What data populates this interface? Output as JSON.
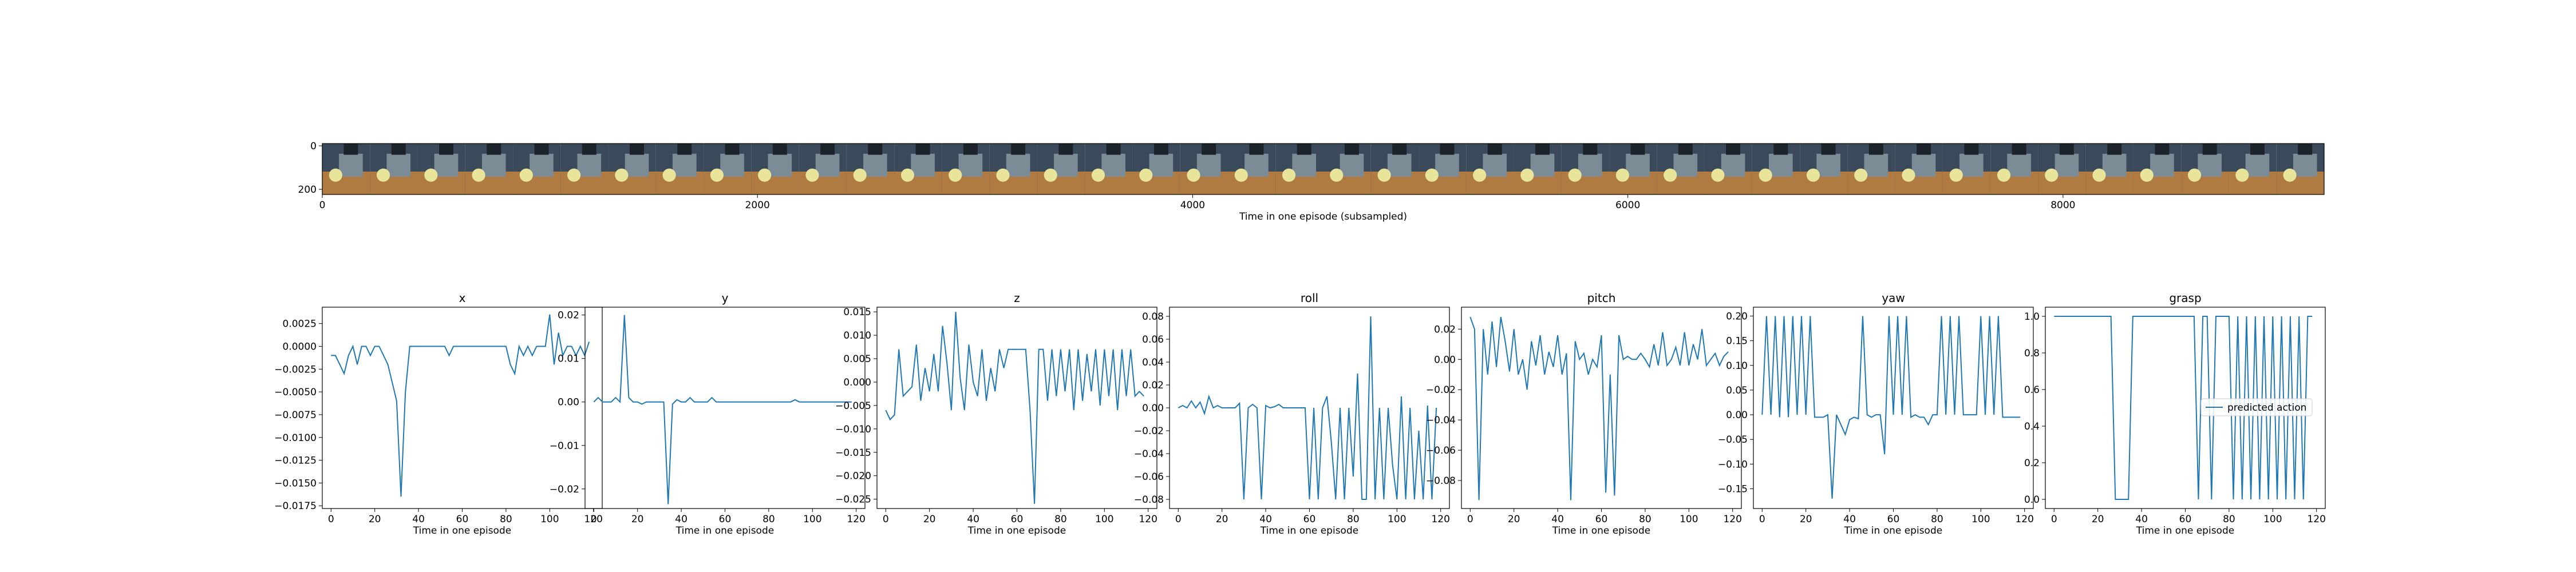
{
  "colors": {
    "series": "#1f77b4",
    "axis": "#000000",
    "background": "#ffffff"
  },
  "strip": {
    "xlabel": "Time in one episode (subsampled)",
    "xticks": [
      "0",
      "2000",
      "4000",
      "6000",
      "8000"
    ],
    "yticks": [
      "0",
      "200"
    ],
    "tiles": 42,
    "palette": [
      "#3a4a5a",
      "#7b8c97",
      "#b07a43",
      "#e8e59a",
      "#1c232b",
      "#8a6a48"
    ]
  },
  "chart_data": [
    {
      "type": "line",
      "title": "x",
      "xlabel": "Time in one episode",
      "xlim": [
        -4,
        124
      ],
      "ylim": [
        -0.0178,
        0.0043
      ],
      "yticks": [
        "0.0025",
        "0.0000",
        "−0.0025",
        "−0.0050",
        "−0.0075",
        "−0.0100",
        "−0.0125",
        "−0.0150",
        "−0.0175"
      ],
      "ytick_values": [
        0.0025,
        0,
        -0.0025,
        -0.005,
        -0.0075,
        -0.01,
        -0.0125,
        -0.015,
        -0.0175
      ],
      "xticks": [
        "0",
        "20",
        "40",
        "60",
        "80",
        "100",
        "120"
      ],
      "xtick_values": [
        0,
        20,
        40,
        60,
        80,
        100,
        120
      ],
      "x": [
        0,
        2,
        4,
        6,
        8,
        10,
        12,
        14,
        16,
        18,
        20,
        22,
        24,
        26,
        28,
        30,
        32,
        34,
        36,
        38,
        40,
        42,
        44,
        46,
        48,
        50,
        52,
        54,
        56,
        58,
        60,
        62,
        64,
        66,
        68,
        70,
        72,
        74,
        76,
        78,
        80,
        82,
        84,
        86,
        88,
        90,
        92,
        94,
        96,
        98,
        100,
        102,
        104,
        106,
        108,
        110,
        112,
        114,
        116,
        118
      ],
      "y": [
        -0.001,
        -0.001,
        -0.002,
        -0.003,
        -0.001,
        0.0,
        -0.002,
        0.0,
        0.0,
        -0.001,
        0.0,
        0.0,
        -0.001,
        -0.002,
        -0.004,
        -0.006,
        -0.0165,
        -0.005,
        0.0,
        0.0,
        0.0,
        0.0,
        0.0,
        0.0,
        0.0,
        0.0,
        0.0,
        -0.001,
        0.0,
        0.0,
        0.0,
        0.0,
        0.0,
        0.0,
        0.0,
        0.0,
        0.0,
        0.0,
        0.0,
        0.0,
        0.0,
        -0.002,
        -0.003,
        0.0,
        -0.001,
        0.0,
        -0.001,
        0.0,
        0.0,
        0.0,
        0.0035,
        -0.002,
        0.0015,
        -0.001,
        0.0,
        0.0,
        -0.001,
        0.0,
        -0.001,
        0.0005
      ],
      "legend": ""
    },
    {
      "type": "line",
      "title": "y",
      "xlabel": "Time in one episode",
      "xlim": [
        -4,
        124
      ],
      "ylim": [
        -0.0245,
        0.0218
      ],
      "yticks": [
        "0.02",
        "0.01",
        "0.00",
        "−0.01",
        "−0.02"
      ],
      "ytick_values": [
        0.02,
        0.01,
        0,
        -0.01,
        -0.02
      ],
      "xticks": [
        "0",
        "20",
        "40",
        "60",
        "80",
        "100",
        "120"
      ],
      "xtick_values": [
        0,
        20,
        40,
        60,
        80,
        100,
        120
      ],
      "x": [
        0,
        2,
        4,
        6,
        8,
        10,
        12,
        14,
        16,
        18,
        20,
        22,
        24,
        26,
        28,
        30,
        32,
        34,
        36,
        38,
        40,
        42,
        44,
        46,
        48,
        50,
        52,
        54,
        56,
        58,
        60,
        62,
        64,
        66,
        68,
        70,
        72,
        74,
        76,
        78,
        80,
        82,
        84,
        86,
        88,
        90,
        92,
        94,
        96,
        98,
        100,
        102,
        104,
        106,
        108,
        110,
        112,
        114,
        116,
        118
      ],
      "y": [
        0.0,
        0.001,
        0.0,
        0.0,
        0.0,
        0.001,
        0.0,
        0.02,
        0.001,
        0.0,
        0.0,
        -0.0005,
        0.0,
        0.0,
        0.0,
        0.0,
        0.0,
        -0.0235,
        -0.0005,
        0.0005,
        0.0,
        0.0,
        0.001,
        0.0,
        0.0,
        0.0,
        0.0,
        0.001,
        0.0,
        0.0,
        0.0,
        0.0,
        0.0,
        0.0,
        0.0,
        0.0,
        0.0,
        0.0,
        0.0,
        0.0,
        0.0,
        0.0,
        0.0,
        0.0,
        0.0,
        0.0,
        0.0005,
        0.0,
        0.0,
        0.0,
        0.0,
        0.0,
        0.0,
        0.0,
        0.0,
        0.0,
        0.0,
        0.0,
        0.0,
        0.0
      ],
      "legend": ""
    },
    {
      "type": "line",
      "title": "z",
      "xlabel": "Time in one episode",
      "xlim": [
        -4,
        124
      ],
      "ylim": [
        -0.027,
        0.016
      ],
      "yticks": [
        "0.015",
        "0.010",
        "0.005",
        "0.000",
        "−0.005",
        "−0.010",
        "−0.015",
        "−0.020",
        "−0.025"
      ],
      "ytick_values": [
        0.015,
        0.01,
        0.005,
        0,
        -0.005,
        -0.01,
        -0.015,
        -0.02,
        -0.025
      ],
      "xticks": [
        "0",
        "20",
        "40",
        "60",
        "80",
        "100",
        "120"
      ],
      "xtick_values": [
        0,
        20,
        40,
        60,
        80,
        100,
        120
      ],
      "x": [
        0,
        2,
        4,
        6,
        8,
        10,
        12,
        14,
        16,
        18,
        20,
        22,
        24,
        26,
        28,
        30,
        32,
        34,
        36,
        38,
        40,
        42,
        44,
        46,
        48,
        50,
        52,
        54,
        56,
        58,
        60,
        62,
        64,
        66,
        68,
        70,
        72,
        74,
        76,
        78,
        80,
        82,
        84,
        86,
        88,
        90,
        92,
        94,
        96,
        98,
        100,
        102,
        104,
        106,
        108,
        110,
        112,
        114,
        116,
        118
      ],
      "y": [
        -0.006,
        -0.008,
        -0.007,
        0.007,
        -0.003,
        -0.002,
        -0.001,
        0.008,
        -0.004,
        0.003,
        -0.002,
        0.006,
        -0.002,
        0.012,
        0.004,
        -0.006,
        0.015,
        0.001,
        -0.006,
        0.008,
        0.0,
        -0.003,
        0.007,
        -0.004,
        0.003,
        -0.002,
        0.007,
        0.003,
        0.007,
        0.007,
        0.007,
        0.007,
        0.007,
        -0.006,
        -0.026,
        0.007,
        0.007,
        -0.004,
        0.007,
        -0.003,
        0.007,
        -0.002,
        0.007,
        -0.006,
        0.007,
        -0.004,
        0.006,
        -0.002,
        0.007,
        -0.005,
        0.007,
        -0.003,
        0.007,
        -0.006,
        0.007,
        -0.003,
        0.007,
        -0.003,
        -0.002,
        -0.003
      ],
      "legend": ""
    },
    {
      "type": "line",
      "title": "roll",
      "xlabel": "Time in one episode",
      "xlim": [
        -4,
        124
      ],
      "ylim": [
        -0.088,
        0.088
      ],
      "yticks": [
        "0.08",
        "0.06",
        "0.04",
        "0.02",
        "0.00",
        "−0.02",
        "−0.04",
        "−0.06",
        "−0.08"
      ],
      "ytick_values": [
        0.08,
        0.06,
        0.04,
        0.02,
        0,
        -0.02,
        -0.04,
        -0.06,
        -0.08
      ],
      "xticks": [
        "0",
        "20",
        "40",
        "60",
        "80",
        "100",
        "120"
      ],
      "xtick_values": [
        0,
        20,
        40,
        60,
        80,
        100,
        120
      ],
      "x": [
        0,
        2,
        4,
        6,
        8,
        10,
        12,
        14,
        16,
        18,
        20,
        22,
        24,
        26,
        28,
        30,
        32,
        34,
        36,
        38,
        40,
        42,
        44,
        46,
        48,
        50,
        52,
        54,
        56,
        58,
        60,
        62,
        64,
        66,
        68,
        70,
        72,
        74,
        76,
        78,
        80,
        82,
        84,
        86,
        88,
        90,
        92,
        94,
        96,
        98,
        100,
        102,
        104,
        106,
        108,
        110,
        112,
        114,
        116,
        118
      ],
      "y": [
        0.0,
        0.002,
        0.0,
        0.006,
        0.0,
        0.005,
        -0.005,
        0.01,
        0.0,
        0.002,
        0.0,
        0.0,
        0.0,
        0.0,
        0.004,
        -0.08,
        0.0,
        0.003,
        0.0,
        -0.08,
        0.002,
        0.0,
        0.001,
        0.003,
        0.0,
        0.0,
        0.0,
        0.0,
        0.0,
        0.0,
        -0.08,
        0.0,
        -0.08,
        0.0,
        0.01,
        -0.03,
        -0.08,
        0.0,
        -0.08,
        0.0,
        -0.06,
        0.03,
        -0.08,
        -0.08,
        0.08,
        -0.08,
        0.0,
        -0.08,
        0.0,
        -0.05,
        -0.08,
        0.01,
        -0.08,
        0.0,
        -0.08,
        -0.02,
        -0.08,
        0.002,
        -0.08,
        0.0
      ],
      "legend": ""
    },
    {
      "type": "line",
      "title": "pitch",
      "xlabel": "Time in one episode",
      "xlim": [
        -4,
        124
      ],
      "ylim": [
        -0.0985,
        0.0345
      ],
      "yticks": [
        "0.02",
        "0.00",
        "−0.02",
        "−0.04",
        "−0.06",
        "−0.08"
      ],
      "ytick_values": [
        0.02,
        0,
        -0.02,
        -0.04,
        -0.06,
        -0.08
      ],
      "xticks": [
        "0",
        "20",
        "40",
        "60",
        "80",
        "100",
        "120"
      ],
      "xtick_values": [
        0,
        20,
        40,
        60,
        80,
        100,
        120
      ],
      "x": [
        0,
        2,
        4,
        6,
        8,
        10,
        12,
        14,
        16,
        18,
        20,
        22,
        24,
        26,
        28,
        30,
        32,
        34,
        36,
        38,
        40,
        42,
        44,
        46,
        48,
        50,
        52,
        54,
        56,
        58,
        60,
        62,
        64,
        66,
        68,
        70,
        72,
        74,
        76,
        78,
        80,
        82,
        84,
        86,
        88,
        90,
        92,
        94,
        96,
        98,
        100,
        102,
        104,
        106,
        108,
        110,
        112,
        114,
        116,
        118
      ],
      "y": [
        0.028,
        0.02,
        -0.093,
        0.02,
        -0.01,
        0.025,
        -0.005,
        0.028,
        0.012,
        -0.008,
        0.02,
        -0.01,
        0.0,
        -0.02,
        0.012,
        -0.004,
        0.016,
        -0.01,
        0.005,
        -0.005,
        0.016,
        -0.01,
        0.004,
        -0.093,
        0.012,
        0.0,
        0.004,
        -0.01,
        0.0,
        -0.005,
        0.016,
        -0.088,
        -0.01,
        -0.09,
        0.016,
        0.0,
        0.002,
        0.0,
        0.0,
        0.004,
        0.0,
        -0.005,
        0.01,
        -0.004,
        0.018,
        -0.004,
        0.0,
        0.008,
        -0.004,
        0.018,
        -0.004,
        0.01,
        0.0,
        0.02,
        -0.004,
        0.0,
        0.004,
        -0.004,
        0.002,
        0.005
      ],
      "legend": ""
    },
    {
      "type": "line",
      "title": "yaw",
      "xlabel": "Time in one episode",
      "xlim": [
        -4,
        124
      ],
      "ylim": [
        -0.19,
        0.218
      ],
      "yticks": [
        "0.20",
        "0.15",
        "0.10",
        "0.05",
        "0.00",
        "−0.05",
        "−0.10",
        "−0.15"
      ],
      "ytick_values": [
        0.2,
        0.15,
        0.1,
        0.05,
        0,
        -0.05,
        -0.1,
        -0.15
      ],
      "xticks": [
        "0",
        "20",
        "40",
        "60",
        "80",
        "100",
        "120"
      ],
      "xtick_values": [
        0,
        20,
        40,
        60,
        80,
        100,
        120
      ],
      "x": [
        0,
        2,
        4,
        6,
        8,
        10,
        12,
        14,
        16,
        18,
        20,
        22,
        24,
        26,
        28,
        30,
        32,
        34,
        36,
        38,
        40,
        42,
        44,
        46,
        48,
        50,
        52,
        54,
        56,
        58,
        60,
        62,
        64,
        66,
        68,
        70,
        72,
        74,
        76,
        78,
        80,
        82,
        84,
        86,
        88,
        90,
        92,
        94,
        96,
        98,
        100,
        102,
        104,
        106,
        108,
        110,
        112,
        114,
        116,
        118
      ],
      "y": [
        0.0,
        0.2,
        0.0,
        0.2,
        -0.005,
        0.2,
        -0.005,
        0.2,
        0.0,
        0.2,
        0.0,
        0.2,
        -0.005,
        -0.005,
        -0.005,
        0.0,
        -0.17,
        0.0,
        -0.02,
        -0.04,
        -0.01,
        -0.005,
        -0.008,
        0.2,
        0.0,
        -0.005,
        0.0,
        0.0,
        -0.08,
        0.2,
        0.0,
        0.2,
        0.0,
        0.2,
        -0.005,
        0.0,
        -0.005,
        -0.005,
        -0.02,
        0.0,
        0.0,
        0.2,
        0.0,
        0.2,
        0.0,
        0.2,
        0.0,
        0.0,
        0.0,
        0.0,
        0.2,
        0.0,
        0.2,
        0.0,
        0.2,
        -0.005,
        -0.005,
        -0.005,
        -0.005,
        -0.005
      ],
      "legend": ""
    },
    {
      "type": "line",
      "title": "grasp",
      "xlabel": "Time in one episode",
      "xlim": [
        -4,
        124
      ],
      "ylim": [
        -0.05,
        1.05
      ],
      "yticks": [
        "1.0",
        "0.8",
        "0.6",
        "0.4",
        "0.2",
        "0.0"
      ],
      "ytick_values": [
        1,
        0.8,
        0.6,
        0.4,
        0.2,
        0
      ],
      "xticks": [
        "0",
        "20",
        "40",
        "60",
        "80",
        "100",
        "120"
      ],
      "xtick_values": [
        0,
        20,
        40,
        60,
        80,
        100,
        120
      ],
      "x": [
        0,
        2,
        4,
        6,
        8,
        10,
        12,
        14,
        16,
        18,
        20,
        22,
        24,
        26,
        28,
        30,
        32,
        34,
        36,
        38,
        40,
        42,
        44,
        46,
        48,
        50,
        52,
        54,
        56,
        58,
        60,
        62,
        64,
        66,
        68,
        70,
        72,
        74,
        76,
        78,
        80,
        82,
        84,
        86,
        88,
        90,
        92,
        94,
        96,
        98,
        100,
        102,
        104,
        106,
        108,
        110,
        112,
        114,
        116,
        118
      ],
      "y": [
        1,
        1,
        1,
        1,
        1,
        1,
        1,
        1,
        1,
        1,
        1,
        1,
        1,
        1,
        0,
        0,
        0,
        0,
        1,
        1,
        1,
        1,
        1,
        1,
        1,
        1,
        1,
        1,
        1,
        1,
        1,
        1,
        1,
        0,
        1,
        1,
        0,
        1,
        1,
        1,
        1,
        0,
        1,
        0,
        1,
        0,
        1,
        0,
        1,
        0,
        1,
        0,
        1,
        0,
        1,
        0,
        1,
        0,
        1,
        1
      ],
      "legend": "predicted action"
    }
  ]
}
